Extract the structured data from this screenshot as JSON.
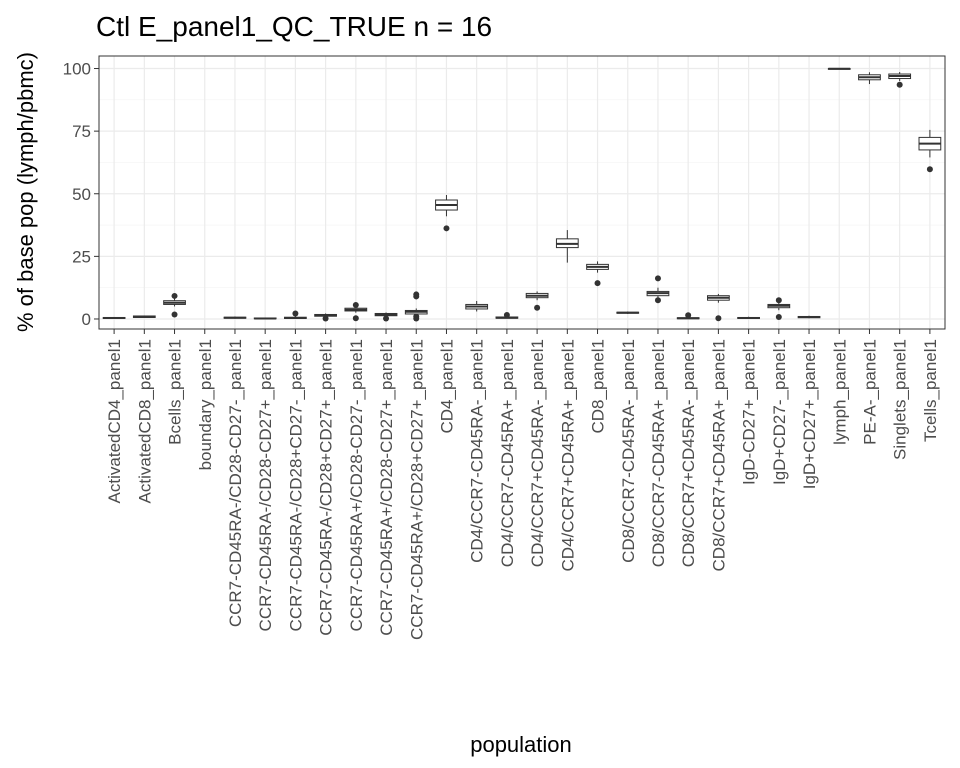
{
  "chart_data": {
    "type": "boxplot",
    "title": "Ctl E_panel1_QC_TRUE n = 16",
    "xlabel": "population",
    "ylabel": "% of base pop (lymph/pbmc)",
    "ylim": [
      -4,
      105
    ],
    "yticks": [
      0,
      25,
      50,
      75,
      100
    ],
    "grid": true,
    "legend": "none",
    "colors": {
      "box_stroke": "#333333",
      "box_fill": "#ffffff",
      "grid": "#ebebeb",
      "tick_text": "#4d4d4d"
    },
    "categories": [
      "ActivatedCD4_panel1",
      "ActivatedCD8_panel1",
      "Bcells_panel1",
      "boundary_panel1",
      "CCR7-CD45RA-/CD28-CD27-_panel1",
      "CCR7-CD45RA-/CD28-CD27+_panel1",
      "CCR7-CD45RA-/CD28+CD27-_panel1",
      "CCR7-CD45RA-/CD28+CD27+_panel1",
      "CCR7-CD45RA+/CD28-CD27-_panel1",
      "CCR7-CD45RA+/CD28-CD27+_panel1",
      "CCR7-CD45RA+/CD28+CD27+_panel1",
      "CD4_panel1",
      "CD4/CCR7-CD45RA-_panel1",
      "CD4/CCR7-CD45RA+_panel1",
      "CD4/CCR7+CD45RA-_panel1",
      "CD4/CCR7+CD45RA+_panel1",
      "CD8_panel1",
      "CD8/CCR7-CD45RA-_panel1",
      "CD8/CCR7-CD45RA+_panel1",
      "CD8/CCR7+CD45RA-_panel1",
      "CD8/CCR7+CD45RA+_panel1",
      "IgD-CD27+_panel1",
      "IgD+CD27-_panel1",
      "IgD+CD27+_panel1",
      "lymph_panel1",
      "PE-A-_panel1",
      "Singlets_panel1",
      "Tcells_panel1"
    ],
    "boxes": [
      {
        "min": 0.1,
        "q1": 0.2,
        "median": 0.4,
        "q3": 0.6,
        "max": 0.8,
        "outliers": []
      },
      {
        "min": 0.4,
        "q1": 0.6,
        "median": 0.9,
        "q3": 1.2,
        "max": 1.4,
        "outliers": []
      },
      {
        "min": 5.0,
        "q1": 5.8,
        "median": 6.5,
        "q3": 7.3,
        "max": 8.2,
        "outliers": [
          9.2,
          1.8
        ]
      },
      null,
      {
        "min": 0.1,
        "q1": 0.3,
        "median": 0.5,
        "q3": 0.7,
        "max": 1.0,
        "outliers": []
      },
      {
        "min": 0.0,
        "q1": 0.1,
        "median": 0.2,
        "q3": 0.4,
        "max": 0.6,
        "outliers": []
      },
      {
        "min": 0.0,
        "q1": 0.2,
        "median": 0.4,
        "q3": 0.7,
        "max": 1.2,
        "outliers": [
          2.2
        ]
      },
      {
        "min": 0.8,
        "q1": 1.1,
        "median": 1.5,
        "q3": 1.8,
        "max": 2.2,
        "outliers": [
          0.2
        ]
      },
      {
        "min": 2.5,
        "q1": 3.2,
        "median": 3.7,
        "q3": 4.3,
        "max": 5.0,
        "outliers": [
          5.6,
          0.3
        ]
      },
      {
        "min": 0.8,
        "q1": 1.3,
        "median": 1.8,
        "q3": 2.2,
        "max": 2.6,
        "outliers": [
          0.2
        ]
      },
      {
        "min": 1.2,
        "q1": 2.0,
        "median": 2.9,
        "q3": 3.4,
        "max": 4.2,
        "outliers": [
          9.8,
          9.0,
          1.0,
          0.2
        ]
      },
      {
        "min": 41.0,
        "q1": 43.5,
        "median": 45.5,
        "q3": 47.5,
        "max": 49.5,
        "outliers": [
          36.2
        ]
      },
      {
        "min": 3.0,
        "q1": 4.0,
        "median": 5.0,
        "q3": 5.8,
        "max": 7.2,
        "outliers": []
      },
      {
        "min": 0.2,
        "q1": 0.3,
        "median": 0.5,
        "q3": 0.8,
        "max": 1.2,
        "outliers": [
          1.6
        ]
      },
      {
        "min": 7.5,
        "q1": 8.5,
        "median": 9.3,
        "q3": 10.2,
        "max": 11.0,
        "outliers": [
          4.5
        ]
      },
      {
        "min": 22.5,
        "q1": 28.5,
        "median": 30.0,
        "q3": 32.0,
        "max": 35.5,
        "outliers": []
      },
      {
        "min": 18.5,
        "q1": 19.8,
        "median": 20.8,
        "q3": 21.8,
        "max": 23.0,
        "outliers": [
          14.3
        ]
      },
      {
        "min": 2.0,
        "q1": 2.3,
        "median": 2.5,
        "q3": 2.7,
        "max": 3.0,
        "outliers": []
      },
      {
        "min": 8.0,
        "q1": 9.3,
        "median": 10.3,
        "q3": 11.0,
        "max": 12.5,
        "outliers": [
          16.2,
          7.5
        ]
      },
      {
        "min": 0.0,
        "q1": 0.1,
        "median": 0.3,
        "q3": 0.5,
        "max": 0.8,
        "outliers": [
          1.5
        ]
      },
      {
        "min": 6.5,
        "q1": 7.5,
        "median": 8.5,
        "q3": 9.3,
        "max": 10.0,
        "outliers": [
          0.3
        ]
      },
      {
        "min": 0.1,
        "q1": 0.2,
        "median": 0.4,
        "q3": 0.6,
        "max": 0.9,
        "outliers": []
      },
      {
        "min": 3.5,
        "q1": 4.5,
        "median": 5.3,
        "q3": 5.8,
        "max": 6.5,
        "outliers": [
          7.5,
          0.8
        ]
      },
      {
        "min": 0.3,
        "q1": 0.5,
        "median": 0.8,
        "q3": 1.0,
        "max": 1.3,
        "outliers": []
      },
      {
        "min": 99.7,
        "q1": 99.8,
        "median": 99.9,
        "q3": 100.0,
        "max": 100.1,
        "outliers": []
      },
      {
        "min": 93.8,
        "q1": 95.5,
        "median": 96.5,
        "q3": 97.5,
        "max": 98.5,
        "outliers": []
      },
      {
        "min": 95.0,
        "q1": 96.0,
        "median": 97.0,
        "q3": 97.8,
        "max": 98.6,
        "outliers": [
          93.5
        ]
      },
      {
        "min": 64.5,
        "q1": 67.5,
        "median": 70.0,
        "q3": 72.5,
        "max": 75.5,
        "outliers": [
          59.8
        ]
      }
    ]
  }
}
